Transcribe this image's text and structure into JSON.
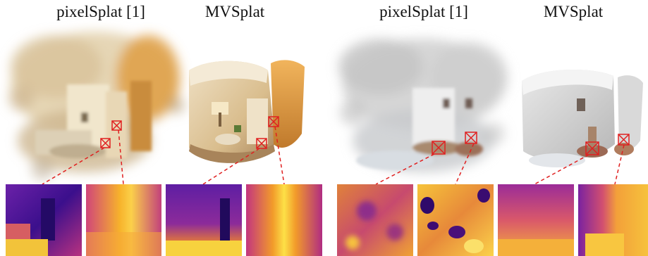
{
  "figure": {
    "labels": [
      {
        "id": "lbl1",
        "text": "pixelSplat [1]"
      },
      {
        "id": "lbl2",
        "text": "MVSplat"
      },
      {
        "id": "lbl3",
        "text": "pixelSplat [1]"
      },
      {
        "id": "lbl4",
        "text": "MVSplat"
      }
    ],
    "colors": {
      "callout": "#e02020",
      "depth_dark": "#2a0a6e",
      "depth_mid": "#c23a7a",
      "depth_light": "#f5c518"
    }
  }
}
